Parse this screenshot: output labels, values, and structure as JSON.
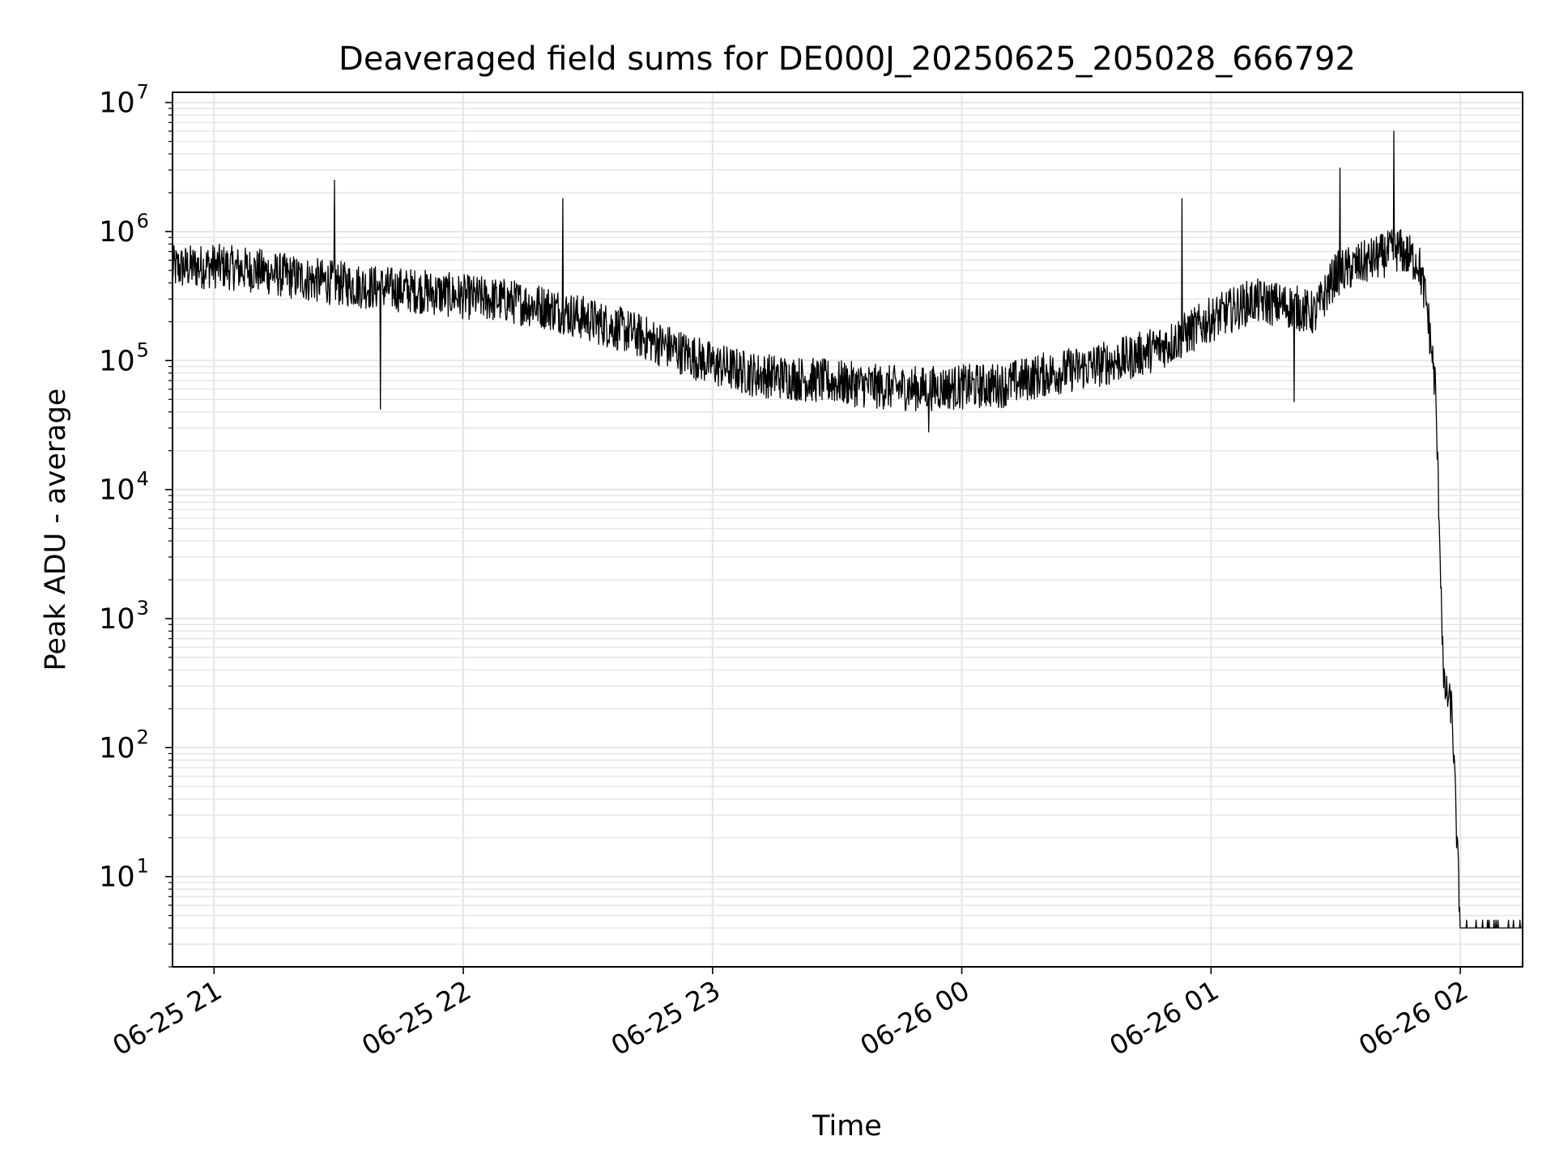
{
  "chart_data": {
    "type": "line",
    "title": "Deaveraged field sums for DE000J_20250625_205028_666792",
    "xlabel": "Time",
    "ylabel": "Peak ADU - average",
    "yscale": "log",
    "grid": true,
    "legend": "none",
    "line_color": "#000000",
    "grid_color": "#e5e5e5",
    "xlim": [
      "06-25 20:50",
      "06-26 02:15"
    ],
    "ylim": [
      2,
      12000000
    ],
    "x_ticks": [
      {
        "at": "06-25 21:00",
        "label": "06-25 21"
      },
      {
        "at": "06-25 22:00",
        "label": "06-25 22"
      },
      {
        "at": "06-25 23:00",
        "label": "06-25 23"
      },
      {
        "at": "06-26 00:00",
        "label": "06-26 00"
      },
      {
        "at": "06-26 01:00",
        "label": "06-26 01"
      },
      {
        "at": "06-26 02:00",
        "label": "06-26 02"
      }
    ],
    "y_ticks": [
      {
        "value": 10,
        "base": "10",
        "exp": "1"
      },
      {
        "value": 100,
        "base": "10",
        "exp": "2"
      },
      {
        "value": 1000,
        "base": "10",
        "exp": "3"
      },
      {
        "value": 10000,
        "base": "10",
        "exp": "4"
      },
      {
        "value": 100000,
        "base": "10",
        "exp": "5"
      },
      {
        "value": 1000000,
        "base": "10",
        "exp": "6"
      },
      {
        "value": 10000000,
        "base": "10",
        "exp": "7"
      }
    ],
    "series": [
      {
        "x": [
          "06-25 20:50",
          "06-25 21:00",
          "06-25 21:10",
          "06-25 21:20",
          "06-25 21:30",
          "06-25 21:40",
          "06-25 21:50",
          "06-25 22:00",
          "06-25 22:10",
          "06-25 22:20",
          "06-25 22:30",
          "06-25 22:40",
          "06-25 22:50",
          "06-25 23:00",
          "06-25 23:10",
          "06-25 23:20",
          "06-25 23:30",
          "06-25 23:40",
          "06-25 23:50",
          "06-26 00:00",
          "06-26 00:10",
          "06-26 00:20",
          "06-26 00:30",
          "06-26 00:40",
          "06-26 00:50",
          "06-26 01:00",
          "06-26 01:10",
          "06-26 01:20",
          "06-26 01:25",
          "06-26 01:30",
          "06-26 01:40",
          "06-26 01:45",
          "06-26 01:50",
          "06-26 01:52",
          "06-26 01:54",
          "06-26 01:55",
          "06-26 01:56",
          "06-26 01:58",
          "06-26 02:00",
          "06-26 02:15"
        ],
        "y": [
          500000,
          520000,
          480000,
          420000,
          380000,
          350000,
          330000,
          300000,
          280000,
          250000,
          200000,
          160000,
          120000,
          90000,
          75000,
          70000,
          65000,
          60000,
          58000,
          60000,
          62000,
          75000,
          85000,
          100000,
          130000,
          200000,
          280000,
          250000,
          220000,
          450000,
          600000,
          700000,
          550000,
          250000,
          60000,
          5000,
          300,
          200,
          4,
          4
        ]
      }
    ],
    "spikes": [
      {
        "x": "06-25 21:29",
        "y": 2500000
      },
      {
        "x": "06-25 21:40",
        "y": 42000
      },
      {
        "x": "06-25 22:24",
        "y": 1800000
      },
      {
        "x": "06-25 23:52",
        "y": 28000
      },
      {
        "x": "06-26 00:53",
        "y": 1800000
      },
      {
        "x": "06-26 01:20",
        "y": 48000
      },
      {
        "x": "06-26 01:31",
        "y": 3100000
      },
      {
        "x": "06-26 01:44",
        "y": 6000000
      }
    ]
  }
}
